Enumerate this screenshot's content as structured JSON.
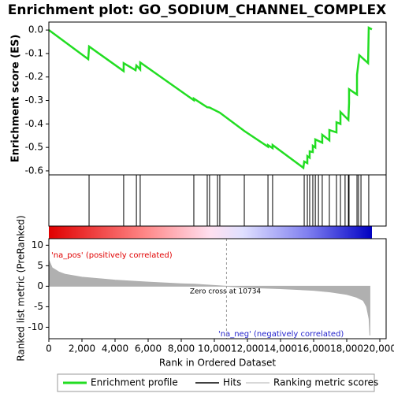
{
  "chart_data": [
    {
      "type": "line",
      "title": "Enrichment plot: GO_SODIUM_CHANNEL_COMPLEX",
      "y_label": "Enrichment score (ES)",
      "ylim": [
        -0.617,
        0.034
      ],
      "yticks": [
        {
          "value": 0,
          "label": "0.0"
        },
        -0.1,
        -0.2,
        -0.3,
        -0.4,
        -0.5,
        -0.6
      ],
      "series": [
        {
          "name": "Enrichment profile",
          "color": "#22dd22",
          "x": [
            0,
            2380,
            2430,
            4520,
            4520,
            5240,
            5290,
            5520,
            5520,
            8760,
            8760,
            9570,
            9710,
            10330,
            11810,
            13240,
            13240,
            13520,
            13520,
            15380,
            15430,
            15620,
            15620,
            15760,
            15760,
            15950,
            15950,
            16100,
            16100,
            16520,
            16520,
            16950,
            16950,
            17380,
            17380,
            17620,
            17620,
            18100,
            18140,
            18140,
            18620,
            18620,
            18760,
            19290,
            19330,
            19520
          ],
          "values": [
            0,
            -0.124,
            -0.07,
            -0.175,
            -0.141,
            -0.171,
            -0.151,
            -0.168,
            -0.138,
            -0.299,
            -0.292,
            -0.329,
            -0.33,
            -0.352,
            -0.43,
            -0.497,
            -0.49,
            -0.503,
            -0.49,
            -0.587,
            -0.56,
            -0.567,
            -0.537,
            -0.544,
            -0.517,
            -0.52,
            -0.493,
            -0.5,
            -0.466,
            -0.48,
            -0.446,
            -0.47,
            -0.426,
            -0.436,
            -0.393,
            -0.4,
            -0.349,
            -0.383,
            -0.31,
            -0.252,
            -0.275,
            -0.191,
            -0.107,
            -0.141,
            0.01,
            0.003
          ]
        }
      ]
    },
    {
      "type": "hits",
      "series": [
        {
          "name": "Hits",
          "color": "#000000",
          "x": [
            2430,
            4520,
            5290,
            5520,
            8760,
            9570,
            9710,
            10190,
            10330,
            11810,
            13240,
            13520,
            15430,
            15620,
            15760,
            15950,
            16100,
            16290,
            16520,
            16950,
            17380,
            17620,
            17900,
            18100,
            18140,
            18620,
            18710,
            18860,
            19330
          ]
        }
      ]
    },
    {
      "type": "area",
      "y_label": "Ranked list metric (PreRanked)",
      "x_label": "Rank in Ordered Dataset",
      "xlim": [
        0,
        20380
      ],
      "xticks": [
        0,
        {
          "value": 2000,
          "label": "2,000"
        },
        {
          "value": 4000,
          "label": "4,000"
        },
        {
          "value": 6000,
          "label": "6,000"
        },
        {
          "value": 8000,
          "label": "8,000"
        },
        {
          "value": 10000,
          "label": "10,000"
        },
        {
          "value": 12000,
          "label": "12,000"
        },
        {
          "value": 14000,
          "label": "14,000"
        },
        {
          "value": 16000,
          "label": "16,000"
        },
        {
          "value": 18000,
          "label": "18,000"
        },
        {
          "value": 20000,
          "label": "20,000"
        }
      ],
      "ylim": [
        -12.8,
        11.6
      ],
      "yticks": [
        -10,
        -5,
        0,
        5,
        10
      ],
      "zero_cross": 10734,
      "annotations": [
        "'na_pos' (positively correlated)",
        "Zero cross at 10734",
        "'na_neg' (negatively correlated)"
      ],
      "series": [
        {
          "name": "Ranking metric scores",
          "color": "#b0b0b0",
          "x": [
            0,
            200,
            600,
            1000,
            2000,
            4000,
            6000,
            8000,
            8800,
            10734,
            12000,
            14000,
            16000,
            17000,
            18000,
            18600,
            19000,
            19200,
            19350,
            19400
          ],
          "values": [
            6.4,
            4.5,
            3.5,
            2.9,
            2.2,
            1.5,
            1.0,
            0.6,
            0.5,
            0,
            -0.3,
            -0.6,
            -1.0,
            -1.4,
            -2.0,
            -2.7,
            -3.5,
            -5,
            -8,
            -12
          ]
        }
      ]
    }
  ]
}
